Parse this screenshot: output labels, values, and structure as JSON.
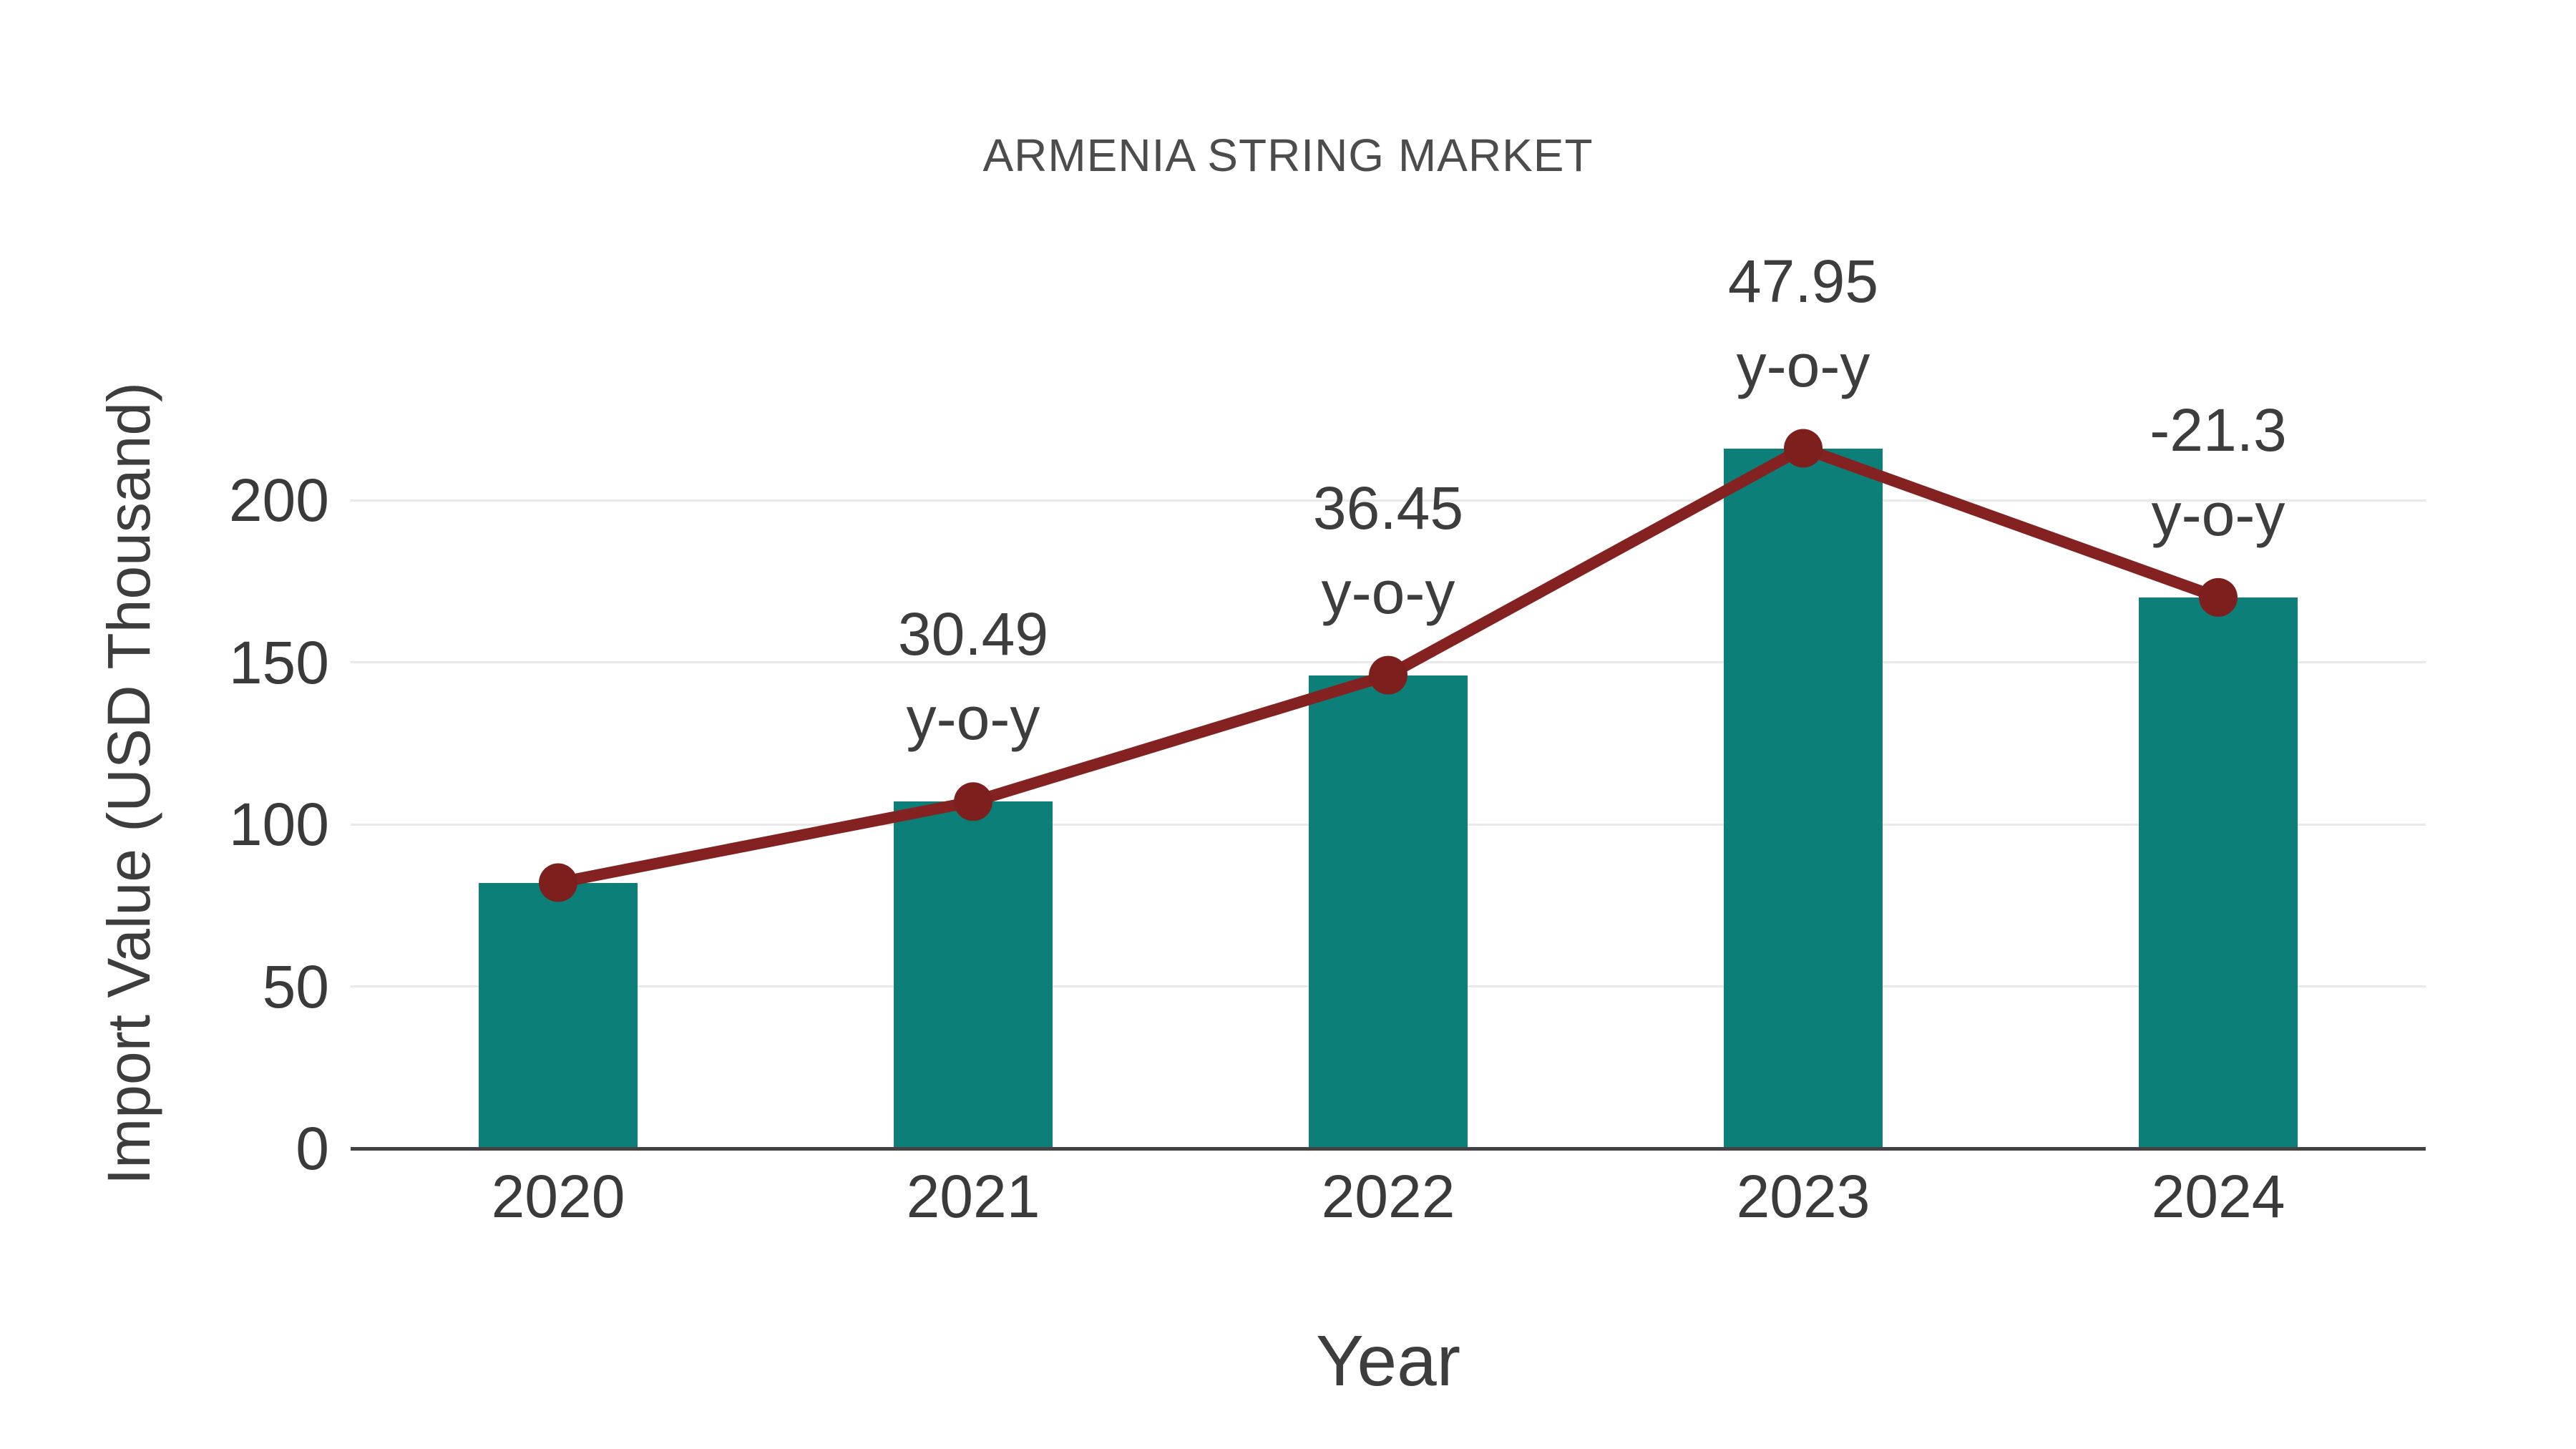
{
  "chart_data": {
    "type": "bar",
    "title": "ARMENIA STRING MARKET",
    "xlabel": "Year",
    "ylabel": "Import Value (USD Thousand)",
    "categories": [
      "2020",
      "2021",
      "2022",
      "2023",
      "2024"
    ],
    "series": [
      {
        "name": "import-value-bars",
        "type": "bar",
        "values": [
          82,
          107,
          146,
          216,
          170
        ],
        "color": "#0C8078"
      },
      {
        "name": "import-value-trend",
        "type": "line",
        "values": [
          82,
          107,
          146,
          216,
          170
        ],
        "color": "#842222",
        "marker_color": "#7C1F1D"
      }
    ],
    "annotations": [
      {
        "category": "2021",
        "value": "30.49",
        "label": "y-o-y"
      },
      {
        "category": "2022",
        "value": "36.45",
        "label": "y-o-y"
      },
      {
        "category": "2023",
        "value": "47.95",
        "label": "y-o-y"
      },
      {
        "category": "2024",
        "value": "-21.3",
        "label": "y-o-y"
      }
    ],
    "yticks": [
      "0",
      "50",
      "100",
      "150",
      "200"
    ],
    "ytick_values": [
      0,
      50,
      100,
      150,
      200
    ],
    "ylim": [
      0,
      240
    ],
    "grid": true,
    "legend_position": "none",
    "background_color": "#ffffff",
    "gridline_color": "#e9e9e9",
    "axis_line_color": "#424242",
    "text_color": "#3d3d3d"
  }
}
